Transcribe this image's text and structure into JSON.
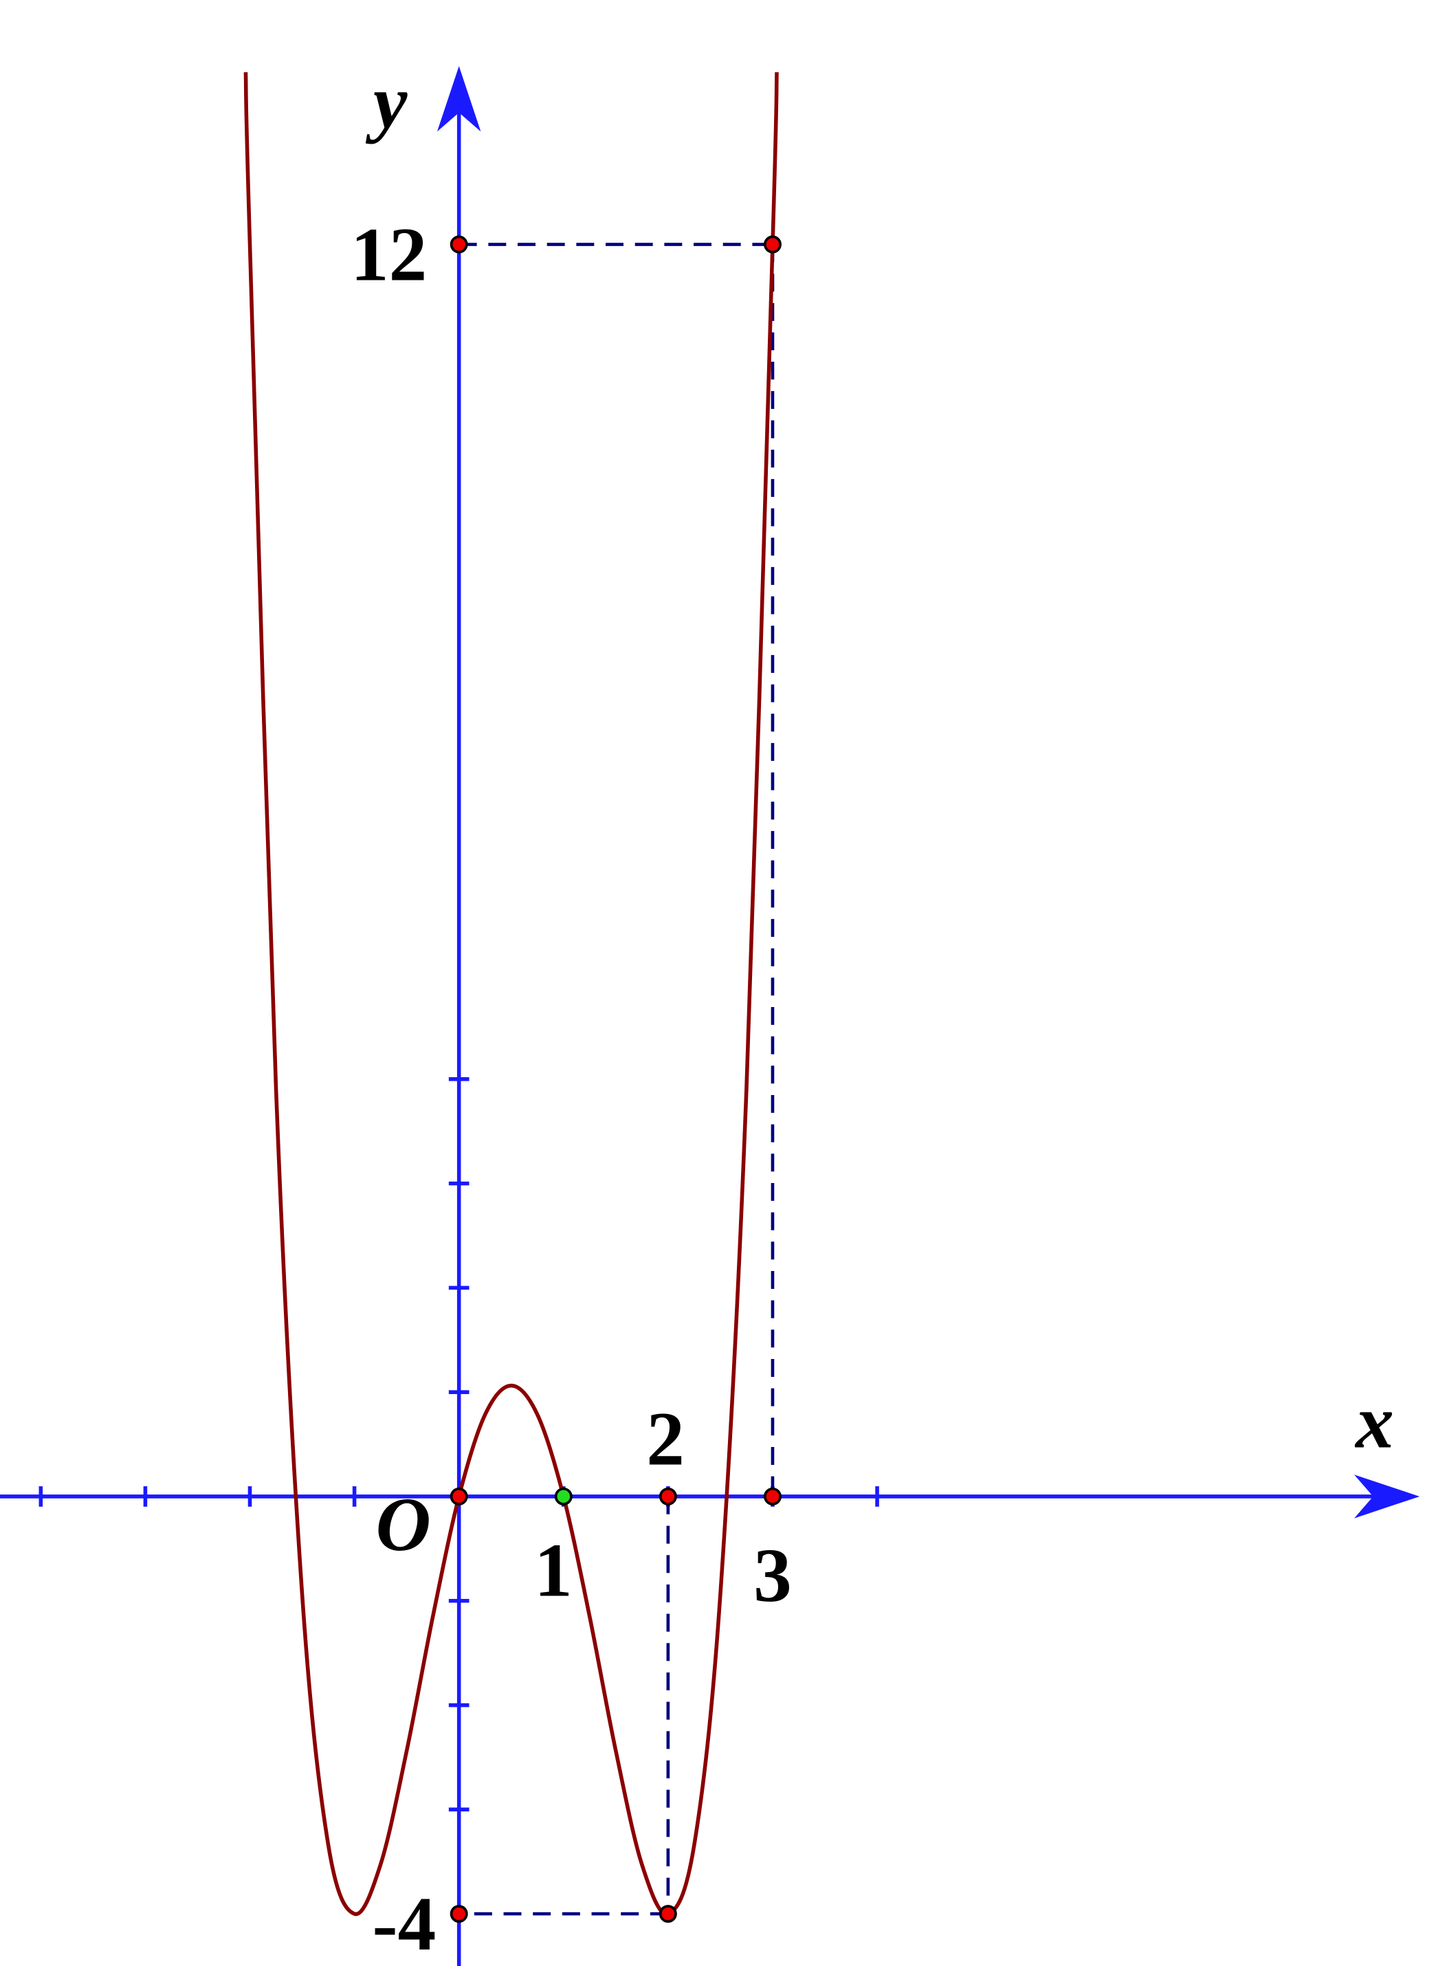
{
  "chart_data": {
    "type": "line",
    "x_label": "x",
    "y_label": "y",
    "x": [
      -2.04,
      -2,
      -1.75,
      -1.5,
      -1.25,
      -1,
      -0.75,
      -0.5,
      -0.25,
      0,
      0.25,
      0.5,
      0.75,
      1,
      1.25,
      1.5,
      1.75,
      2,
      2.25,
      2.5,
      2.75,
      3,
      3.04
    ],
    "values": [
      13.65,
      12,
      3.9102,
      -0.9375,
      -3.3398,
      -4,
      -3.5273,
      -2.4375,
      -1.1523,
      0,
      0.7852,
      1.0625,
      0.7852,
      0,
      -1.1523,
      -2.4375,
      -3.5273,
      -4,
      -3.3398,
      -0.9375,
      3.9102,
      12,
      13.65
    ],
    "color": "#8b0000",
    "axis_color": "#1a1aff",
    "xlim": [
      -4.39,
      9.15
    ],
    "ylim": [
      -4.5,
      13.67
    ],
    "xticks": [
      -4,
      -3,
      -2,
      -1,
      1,
      2,
      3,
      4
    ],
    "yticks": [
      -3,
      -2,
      -1,
      1,
      2,
      3,
      4
    ],
    "points": [
      {
        "x": 0,
        "y": 0,
        "label": "O",
        "color": "#ee0000"
      },
      {
        "x": 1,
        "y": 0,
        "label": "1",
        "color": "#22dd22"
      },
      {
        "x": 2,
        "y": 0,
        "label": "2",
        "color": "#ee0000"
      },
      {
        "x": 3,
        "y": 0,
        "label": "3",
        "color": "#ee0000"
      },
      {
        "x": 0,
        "y": 12,
        "label": "12",
        "color": "#ee0000"
      },
      {
        "x": 3,
        "y": 12,
        "color": "#ee0000"
      },
      {
        "x": 2,
        "y": -4,
        "color": "#ee0000"
      },
      {
        "x": 0,
        "y": -4,
        "label": "-4",
        "color": "#ee0000"
      }
    ]
  }
}
